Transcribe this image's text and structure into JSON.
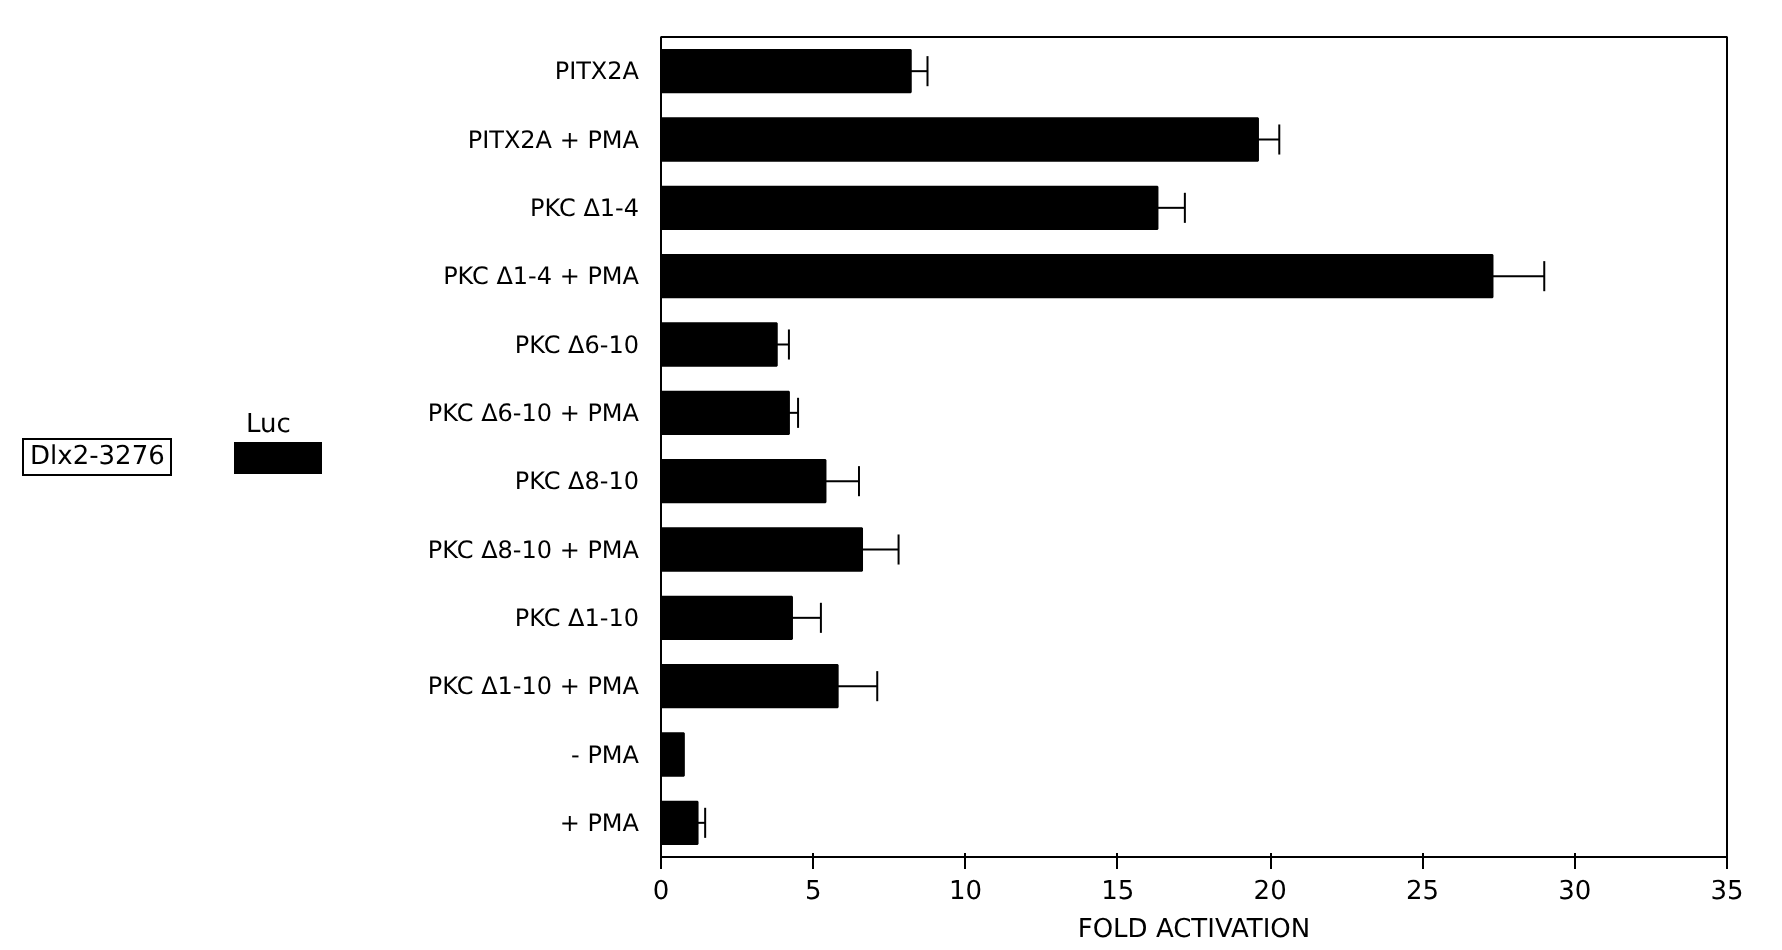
{
  "chart_data": {
    "type": "bar",
    "orientation": "horizontal",
    "xlabel": "FOLD ACTIVATION",
    "categories": [
      "PITX2A",
      "PITX2A + PMA",
      "PKC Δ1-4",
      "PKC Δ1-4 + PMA",
      "PKC Δ6-10",
      "PKC Δ6-10 + PMA",
      "PKC Δ8-10",
      "PKC Δ8-10 + PMA",
      "PKC Δ1-10",
      "PKC Δ1-10 + PMA",
      "- PMA",
      "+ PMA"
    ],
    "values": [
      8.2,
      19.6,
      16.3,
      27.3,
      3.8,
      4.2,
      5.4,
      6.6,
      4.3,
      5.8,
      0.75,
      1.2
    ],
    "errors": [
      [
        8.2,
        8.75
      ],
      [
        19.6,
        20.3
      ],
      [
        16.3,
        17.2
      ],
      [
        27.3,
        29.0
      ],
      [
        3.8,
        4.2
      ],
      [
        4.2,
        4.5
      ],
      [
        5.4,
        6.5
      ],
      [
        6.6,
        7.8
      ],
      [
        4.3,
        5.25
      ],
      [
        5.8,
        7.1
      ],
      null,
      [
        1.2,
        1.45
      ]
    ],
    "color": "#000000",
    "xlim": [
      0,
      35
    ],
    "xticks": [
      0,
      5,
      10,
      15,
      20,
      25,
      30,
      35
    ],
    "grid": false,
    "annotations": [
      "Dlx2-3276",
      "Luc"
    ]
  }
}
